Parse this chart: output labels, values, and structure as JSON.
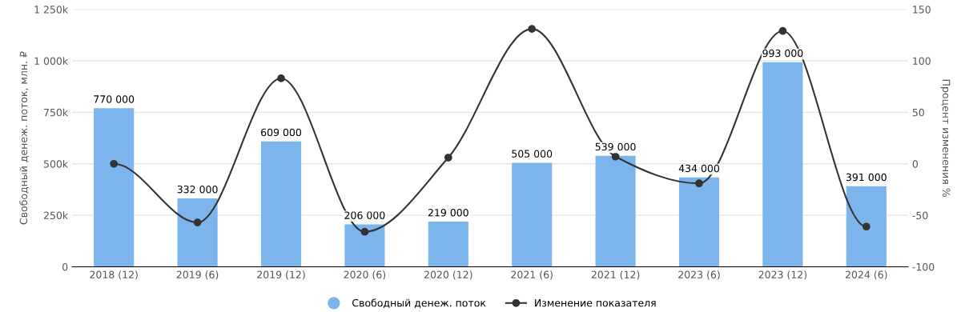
{
  "chart_data": {
    "type": "bar",
    "categories": [
      "2018 (12)",
      "2019 (6)",
      "2019 (12)",
      "2020 (6)",
      "2020 (12)",
      "2021 (6)",
      "2021 (12)",
      "2023 (6)",
      "2023 (12)",
      "2024 (6)"
    ],
    "ylabel": "Свободный денеж. поток, млн. ₽",
    "y2label": "Процент изменения %",
    "ylim": [
      0,
      1250000
    ],
    "yticks": [
      {
        "value": 0,
        "label": "0"
      },
      {
        "value": 250000,
        "label": "250k"
      },
      {
        "value": 500000,
        "label": "500k"
      },
      {
        "value": 750000,
        "label": "750k"
      },
      {
        "value": 1000000,
        "label": "1 000k"
      },
      {
        "value": 1250000,
        "label": "1 250k"
      }
    ],
    "y2lim": [
      -100,
      150
    ],
    "y2ticks": [
      -100,
      -50,
      0,
      50,
      100,
      150
    ],
    "grid": "y",
    "legend": "bottom",
    "series": [
      {
        "name": "Свободный денеж. поток",
        "color": "#7cb5ec",
        "values": [
          770000,
          332000,
          609000,
          206000,
          219000,
          505000,
          539000,
          434000,
          993000,
          391000
        ],
        "value_labels": [
          "770 000",
          "332 000",
          "609 000",
          "206 000",
          "219 000",
          "505 000",
          "539 000",
          "434 000",
          "993 000",
          "391 000"
        ]
      },
      {
        "name": "Изменение показателя",
        "type": "line",
        "axis": "y2",
        "color": "#333333",
        "marker": "circle",
        "values": [
          0,
          -57,
          83,
          -66,
          6,
          131,
          7,
          -19,
          129,
          -61
        ]
      }
    ]
  }
}
